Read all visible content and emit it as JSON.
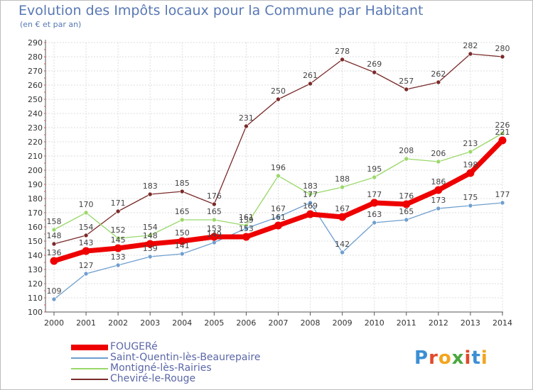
{
  "header": {
    "title": "Evolution des Impôts locaux pour la Commune par Habitant",
    "subtitle": "(en € et par an)"
  },
  "logo": {
    "text": "Proxiti",
    "colors": [
      "#3b8fd4",
      "#e04a2a",
      "#f2a51d",
      "#4aa83c",
      "#e04a2a",
      "#3b8fd4",
      "#f2a51d"
    ]
  },
  "chart_data": {
    "type": "line",
    "x": [
      "2000",
      "2001",
      "2002",
      "2003",
      "2004",
      "2005",
      "2006",
      "2007",
      "2008",
      "2009",
      "2010",
      "2011",
      "2012",
      "2013",
      "2014"
    ],
    "ylim": [
      100,
      290
    ],
    "yticks": [
      100,
      110,
      120,
      130,
      140,
      150,
      160,
      170,
      180,
      190,
      200,
      210,
      220,
      230,
      240,
      250,
      260,
      270,
      280,
      290
    ],
    "grid": true,
    "legend_position": "bottom-left",
    "series": [
      {
        "name": "FOUGERé",
        "color": "#ee0000",
        "values": [
          136,
          143,
          145,
          148,
          150,
          153,
          153,
          161,
          169,
          167,
          177,
          176,
          186,
          198,
          221
        ]
      },
      {
        "name": "Saint-Quentin-lès-Beaurepaire",
        "color": "#6f9fcf",
        "values": [
          109,
          127,
          133,
          139,
          141,
          149,
          159,
          167,
          177,
          142,
          163,
          165,
          173,
          175,
          177
        ]
      },
      {
        "name": "Montigné-lès-Rairies",
        "color": "#9ad86a",
        "values": [
          158,
          170,
          152,
          154,
          165,
          165,
          161,
          196,
          183,
          188,
          195,
          208,
          206,
          213,
          226
        ]
      },
      {
        "name": "Cheviré-le-Rouge",
        "color": "#7a2a2a",
        "values": [
          148,
          154,
          171,
          183,
          185,
          176,
          231,
          250,
          261,
          278,
          269,
          257,
          262,
          282,
          280
        ]
      }
    ]
  }
}
